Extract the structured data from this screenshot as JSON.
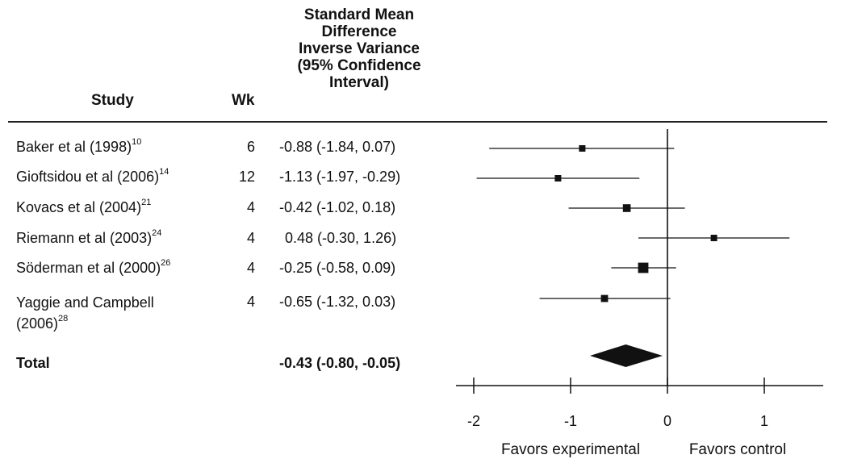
{
  "headers": {
    "study": "Study",
    "wk": "Wk",
    "effect_lines": [
      "Standard Mean",
      "Difference",
      "Inverse Variance",
      "(95% Confidence",
      "Interval)"
    ]
  },
  "chart_data": {
    "type": "forest",
    "xlim": [
      -2,
      1.6
    ],
    "ticks": [
      -2,
      -1,
      0,
      1
    ],
    "tick_labels": [
      "-2",
      "-1",
      "0",
      "1"
    ],
    "reference_line": 0,
    "favors_left": "Favors experimental",
    "favors_right": "Favors control",
    "studies": [
      {
        "name": "Baker et al (1998)",
        "ref": "10",
        "wk": "6",
        "ci_text": "-0.88 (-1.84, 0.07)",
        "est": -0.88,
        "lo": -1.84,
        "hi": 0.07,
        "weight": 1
      },
      {
        "name": "Gioftsidou et al (2006)",
        "ref": "14",
        "wk": "12",
        "ci_text": "-1.13 (-1.97, -0.29)",
        "est": -1.13,
        "lo": -1.97,
        "hi": -0.29,
        "weight": 1
      },
      {
        "name": "Kovacs et al (2004)",
        "ref": "21",
        "wk": "4",
        "ci_text": "-0.42 (-1.02, 0.18)",
        "est": -0.42,
        "lo": -1.02,
        "hi": 0.18,
        "weight": 1.2
      },
      {
        "name": "Riemann et al (2003)",
        "ref": "24",
        "wk": "4",
        "ci_text": "0.48 (-0.30, 1.26)",
        "est": 0.48,
        "lo": -0.3,
        "hi": 1.26,
        "weight": 1
      },
      {
        "name": "Söderman et al (2000)",
        "ref": "26",
        "wk": "4",
        "ci_text": "-0.25 (-0.58, 0.09)",
        "est": -0.25,
        "lo": -0.58,
        "hi": 0.09,
        "weight": 1.6
      },
      {
        "name": "Yaggie and Campbell",
        "name2": "(2006)",
        "ref": "28",
        "wk": "4",
        "ci_text": "-0.65 (-1.32, 0.03)",
        "est": -0.65,
        "lo": -1.32,
        "hi": 0.03,
        "weight": 1.1
      }
    ],
    "total": {
      "label": "Total",
      "ci_text": "-0.43 (-0.80, -0.05)",
      "est": -0.43,
      "lo": -0.8,
      "hi": -0.05
    }
  }
}
